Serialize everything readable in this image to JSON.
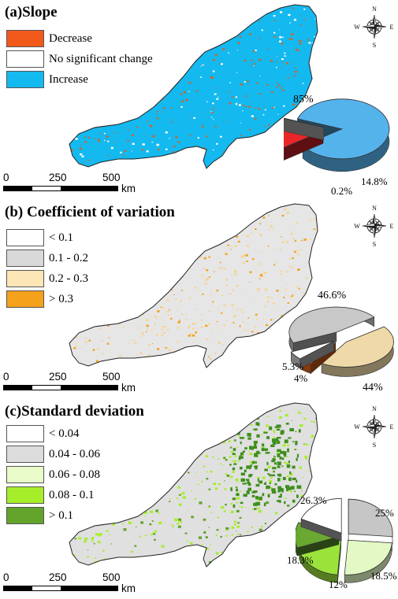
{
  "panels": [
    {
      "id": "a",
      "title": "(a)Slope",
      "legend": [
        {
          "label": "Decrease",
          "color": "#f25a1c"
        },
        {
          "label": "No significant change",
          "color": "#ffffff"
        },
        {
          "label": "Increase",
          "color": "#14b9ef"
        }
      ],
      "map_color": "#14b9ef",
      "speckle_colors": [
        "#c46a2c",
        "#ffffff"
      ],
      "pie": [
        {
          "label": "85%",
          "value": 85,
          "color": "#55b3ec"
        },
        {
          "label": "14.8%",
          "value": 14.8,
          "color": "#e8262a"
        },
        {
          "label": "0.2%",
          "value": 0.2,
          "color": "#ffffff"
        }
      ]
    },
    {
      "id": "b",
      "title": "(b) Coefficient of variation",
      "legend": [
        {
          "label": "< 0.1",
          "color": "#ffffff"
        },
        {
          "label": "0.1 - 0.2",
          "color": "#d9d9d9"
        },
        {
          "label": "0.2 - 0.3",
          "color": "#fde6b5"
        },
        {
          "label": "> 0.3",
          "color": "#f4a11c"
        }
      ],
      "map_color": "#e6e6e6",
      "speckle_colors": [
        "#f6d494",
        "#f4a11c"
      ],
      "pie": [
        {
          "label": "46.6%",
          "value": 46.6,
          "color": "#c8c8c8"
        },
        {
          "label": "44%",
          "value": 44,
          "color": "#efd9a8"
        },
        {
          "label": "4%",
          "value": 4,
          "color": "#ec6a1c"
        },
        {
          "label": "5.3%",
          "value": 5.3,
          "color": "#ffffff"
        }
      ]
    },
    {
      "id": "c",
      "title": "(c)Standard deviation",
      "legend": [
        {
          "label": "< 0.04",
          "color": "#ffffff"
        },
        {
          "label": "0.04 - 0.06",
          "color": "#dcdcdc"
        },
        {
          "label": "0.06 - 0.08",
          "color": "#e8fbc9"
        },
        {
          "label": "0.08 - 0.1",
          "color": "#a6ee2a"
        },
        {
          "label": "> 0.1",
          "color": "#62a32c"
        }
      ],
      "map_color": "#e0e0e0",
      "speckle_colors": [
        "#a6ee2a",
        "#62a32c"
      ],
      "pie": [
        {
          "label": "26.3%",
          "value": 26.3,
          "color": "#c6c6c6"
        },
        {
          "label": "25%",
          "value": 25,
          "color": "#e3f8c4"
        },
        {
          "label": "18.5%",
          "value": 18.5,
          "color": "#9ae33a"
        },
        {
          "label": "12%",
          "value": 12,
          "color": "#6aa832"
        },
        {
          "label": "18.3%",
          "value": 18.3,
          "color": "#ffffff"
        }
      ]
    }
  ],
  "scale": {
    "ticks": [
      "0",
      "250",
      "500"
    ],
    "unit": "km"
  },
  "compass": {
    "n": "N",
    "s": "S",
    "e": "E",
    "w": "W"
  }
}
